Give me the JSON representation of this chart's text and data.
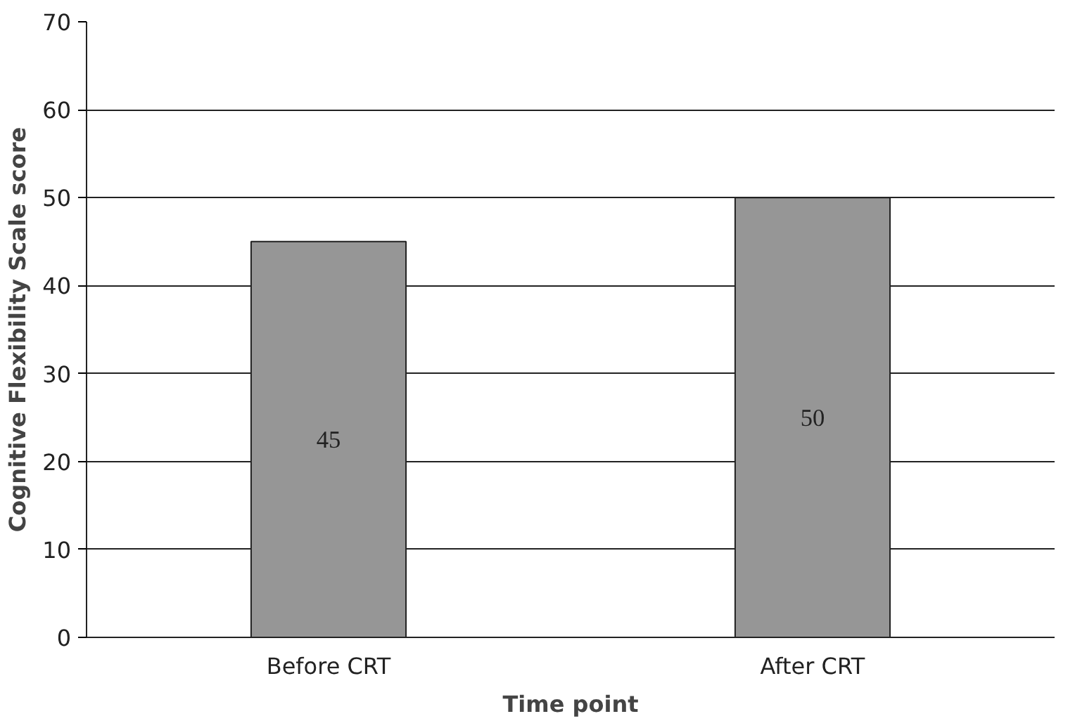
{
  "chart_data": {
    "type": "bar",
    "xlabel": "Time point",
    "ylabel": "Cognitive Flexibility Scale score",
    "categories": [
      "Before CRT",
      "After CRT"
    ],
    "values": [
      45,
      50
    ],
    "color": "#969696",
    "ylim": [
      0,
      70
    ],
    "yticks": [
      0,
      10,
      20,
      30,
      40,
      50,
      60,
      70
    ],
    "grid": "y",
    "data_labels": true
  }
}
